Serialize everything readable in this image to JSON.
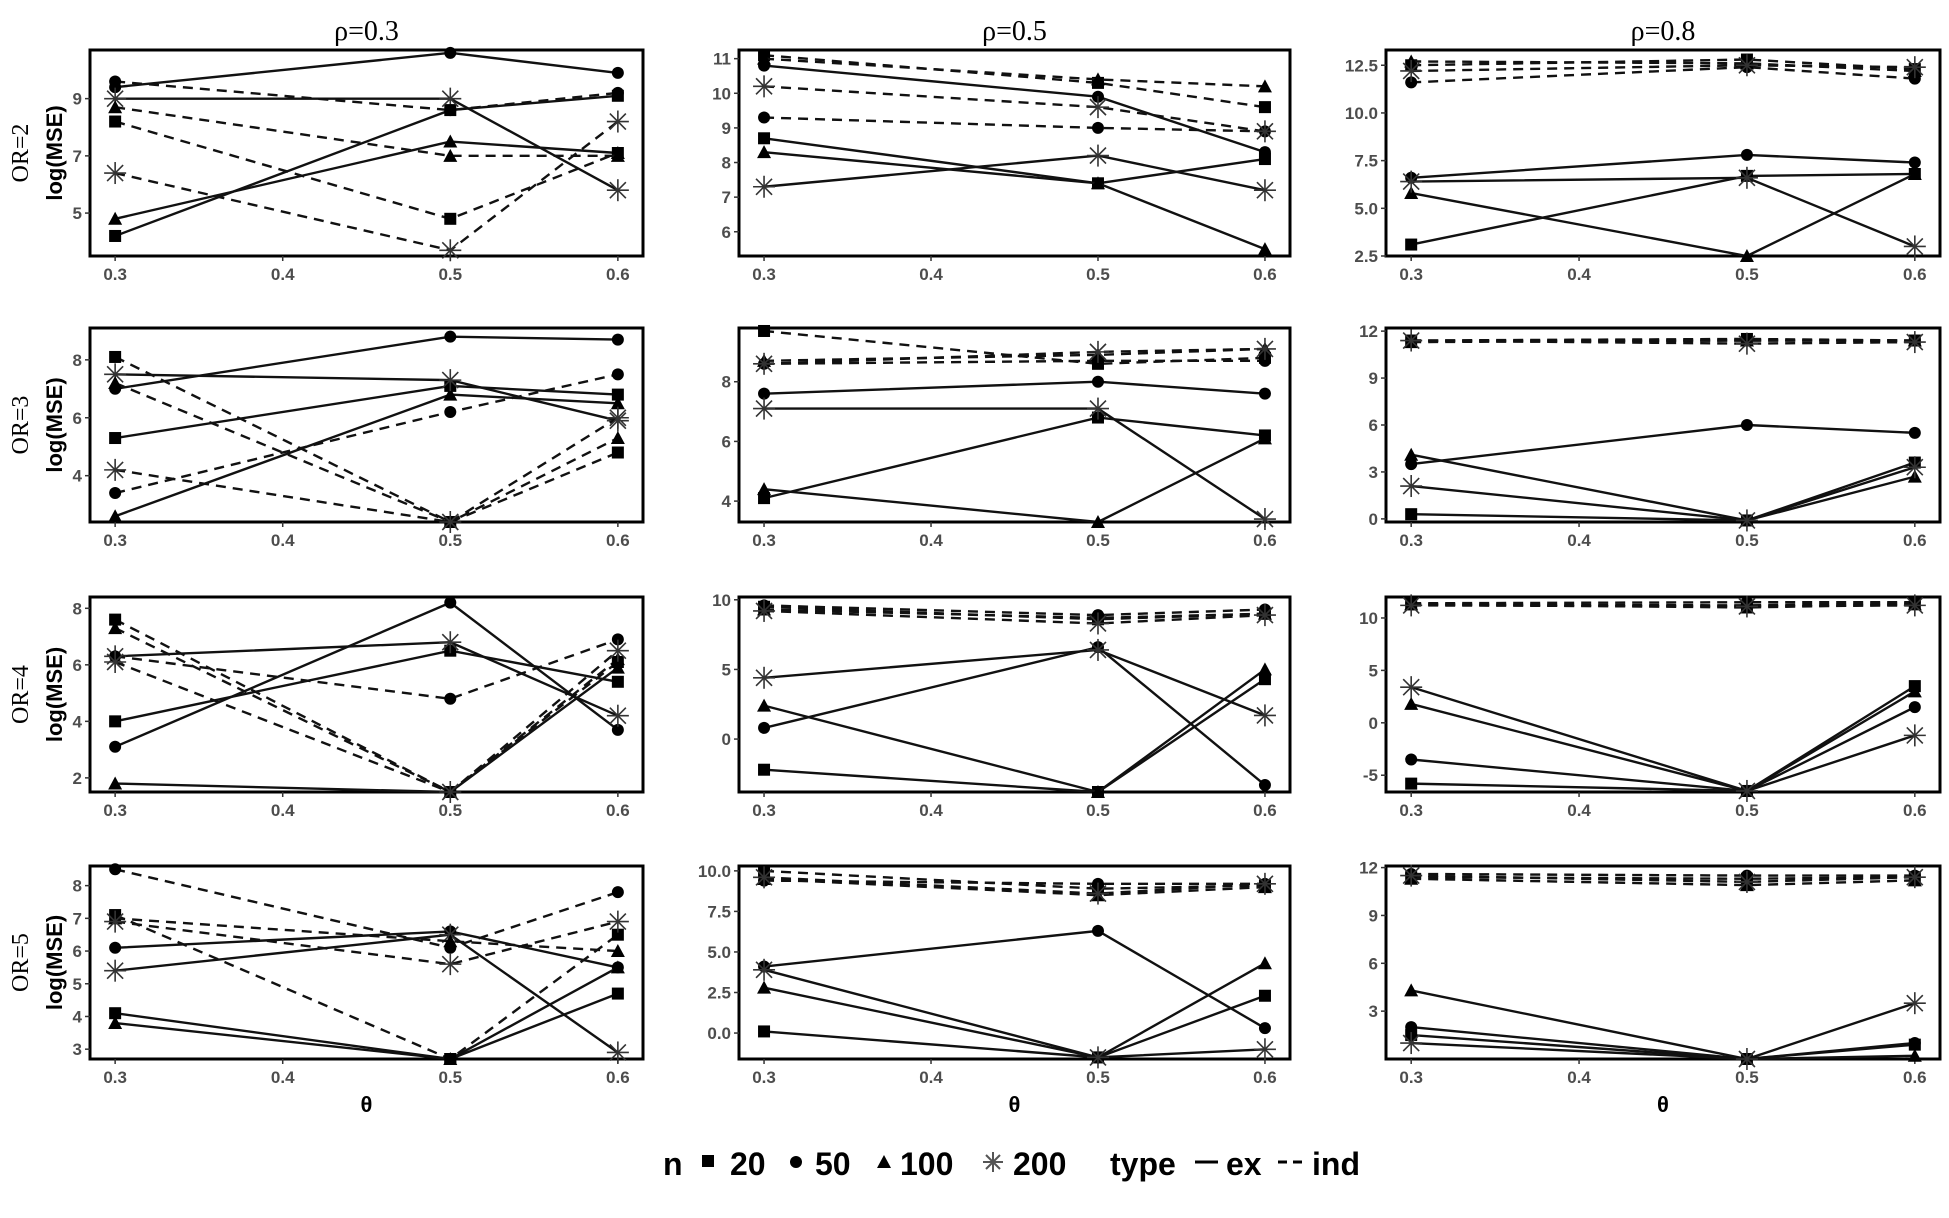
{
  "chart_data": {
    "type": "line",
    "xlabel": "θ",
    "ylabel": "log(MSE)",
    "x": [
      0.3,
      0.5,
      0.6
    ],
    "xticks": [
      0.3,
      0.4,
      0.5,
      0.6
    ],
    "xlim": [
      0.285,
      0.615
    ],
    "columns": [
      "ρ=0.3",
      "ρ=0.5",
      "ρ=0.8"
    ],
    "rows": [
      "OR=2",
      "OR=3",
      "OR=4",
      "OR=5"
    ],
    "legend": {
      "n_title": "n",
      "n_values": [
        "20",
        "50",
        "100",
        "200"
      ],
      "type_title": "type",
      "type_values": [
        "ex",
        "ind"
      ],
      "placement": "bottom"
    },
    "panels": [
      {
        "row": 0,
        "col": 0,
        "ylim": [
          3.5,
          10.7
        ],
        "yticks": [
          5,
          7,
          9
        ],
        "series": [
          {
            "n": "20",
            "type": "ex",
            "values": [
              4.2,
              8.6,
              9.1
            ]
          },
          {
            "n": "50",
            "type": "ex",
            "values": [
              9.4,
              10.6,
              9.9
            ]
          },
          {
            "n": "100",
            "type": "ex",
            "values": [
              4.8,
              7.5,
              7.1
            ]
          },
          {
            "n": "200",
            "type": "ex",
            "values": [
              9.0,
              9.0,
              5.8
            ]
          },
          {
            "n": "20",
            "type": "ind",
            "values": [
              8.2,
              4.8,
              7.1
            ]
          },
          {
            "n": "50",
            "type": "ind",
            "values": [
              9.6,
              8.6,
              9.2
            ]
          },
          {
            "n": "100",
            "type": "ind",
            "values": [
              8.7,
              7.0,
              7.0
            ]
          },
          {
            "n": "200",
            "type": "ind",
            "values": [
              6.4,
              3.7,
              8.2
            ]
          }
        ]
      },
      {
        "row": 0,
        "col": 1,
        "ylim": [
          5.3,
          11.25
        ],
        "yticks": [
          6,
          7,
          8,
          9,
          10,
          11
        ],
        "series": [
          {
            "n": "20",
            "type": "ex",
            "values": [
              8.7,
              7.4,
              8.1
            ]
          },
          {
            "n": "50",
            "type": "ex",
            "values": [
              10.8,
              9.9,
              8.3
            ]
          },
          {
            "n": "100",
            "type": "ex",
            "values": [
              8.3,
              7.4,
              5.5
            ]
          },
          {
            "n": "200",
            "type": "ex",
            "values": [
              7.3,
              8.2,
              7.2
            ]
          },
          {
            "n": "20",
            "type": "ind",
            "values": [
              11.1,
              10.3,
              9.6
            ]
          },
          {
            "n": "50",
            "type": "ind",
            "values": [
              9.3,
              9.0,
              8.9
            ]
          },
          {
            "n": "100",
            "type": "ind",
            "values": [
              11.0,
              10.4,
              10.2
            ]
          },
          {
            "n": "200",
            "type": "ind",
            "values": [
              10.2,
              9.6,
              8.9
            ]
          }
        ]
      },
      {
        "row": 0,
        "col": 2,
        "ylim": [
          2.5,
          13.3
        ],
        "yticks": [
          2.5,
          5.0,
          7.5,
          10.0,
          12.5
        ],
        "series": [
          {
            "n": "20",
            "type": "ex",
            "values": [
              3.1,
              6.7,
              6.8
            ]
          },
          {
            "n": "50",
            "type": "ex",
            "values": [
              6.6,
              7.8,
              7.4
            ]
          },
          {
            "n": "100",
            "type": "ex",
            "values": [
              5.8,
              2.5,
              6.8
            ]
          },
          {
            "n": "200",
            "type": "ex",
            "values": [
              6.4,
              6.6,
              3.0
            ]
          },
          {
            "n": "20",
            "type": "ind",
            "values": [
              12.5,
              12.8,
              12.3
            ]
          },
          {
            "n": "50",
            "type": "ind",
            "values": [
              11.6,
              12.4,
              11.8
            ]
          },
          {
            "n": "100",
            "type": "ind",
            "values": [
              12.7,
              12.6,
              12.2
            ]
          },
          {
            "n": "200",
            "type": "ind",
            "values": [
              12.2,
              12.5,
              12.4
            ]
          }
        ]
      },
      {
        "row": 1,
        "col": 0,
        "ylim": [
          2.4,
          9.1
        ],
        "yticks": [
          4,
          6,
          8
        ],
        "series": [
          {
            "n": "20",
            "type": "ex",
            "values": [
              5.3,
              7.1,
              6.8
            ]
          },
          {
            "n": "50",
            "type": "ex",
            "values": [
              7.0,
              8.8,
              8.7
            ]
          },
          {
            "n": "100",
            "type": "ex",
            "values": [
              2.6,
              6.8,
              6.5
            ]
          },
          {
            "n": "200",
            "type": "ex",
            "values": [
              7.5,
              7.3,
              5.9
            ]
          },
          {
            "n": "20",
            "type": "ind",
            "values": [
              8.1,
              2.4,
              4.8
            ]
          },
          {
            "n": "50",
            "type": "ind",
            "values": [
              3.4,
              6.2,
              7.5
            ]
          },
          {
            "n": "100",
            "type": "ind",
            "values": [
              7.2,
              2.4,
              5.3
            ]
          },
          {
            "n": "200",
            "type": "ind",
            "values": [
              4.2,
              2.4,
              6.0
            ]
          }
        ]
      },
      {
        "row": 1,
        "col": 1,
        "ylim": [
          3.3,
          9.8
        ],
        "yticks": [
          4,
          6,
          8
        ],
        "series": [
          {
            "n": "20",
            "type": "ex",
            "values": [
              4.1,
              6.8,
              6.2
            ]
          },
          {
            "n": "50",
            "type": "ex",
            "values": [
              7.6,
              8.0,
              7.6
            ]
          },
          {
            "n": "100",
            "type": "ex",
            "values": [
              4.4,
              3.3,
              6.1
            ]
          },
          {
            "n": "200",
            "type": "ex",
            "values": [
              7.1,
              7.1,
              3.4
            ]
          },
          {
            "n": "20",
            "type": "ind",
            "values": [
              9.7,
              8.6,
              8.8
            ]
          },
          {
            "n": "50",
            "type": "ind",
            "values": [
              8.6,
              8.7,
              8.7
            ]
          },
          {
            "n": "100",
            "type": "ind",
            "values": [
              8.7,
              8.9,
              9.1
            ]
          },
          {
            "n": "200",
            "type": "ind",
            "values": [
              8.6,
              9.0,
              9.1
            ]
          }
        ]
      },
      {
        "row": 1,
        "col": 2,
        "ylim": [
          -0.2,
          12.2
        ],
        "yticks": [
          0,
          3,
          6,
          9,
          12
        ],
        "series": [
          {
            "n": "20",
            "type": "ex",
            "values": [
              0.3,
              -0.1,
              3.6
            ]
          },
          {
            "n": "50",
            "type": "ex",
            "values": [
              3.5,
              6.0,
              5.5
            ]
          },
          {
            "n": "100",
            "type": "ex",
            "values": [
              4.1,
              -0.1,
              2.7
            ]
          },
          {
            "n": "200",
            "type": "ex",
            "values": [
              2.1,
              -0.1,
              3.3
            ]
          },
          {
            "n": "20",
            "type": "ind",
            "values": [
              11.4,
              11.5,
              11.4
            ]
          },
          {
            "n": "50",
            "type": "ind",
            "values": [
              11.4,
              11.4,
              11.4
            ]
          },
          {
            "n": "100",
            "type": "ind",
            "values": [
              11.3,
              11.4,
              11.4
            ]
          },
          {
            "n": "200",
            "type": "ind",
            "values": [
              11.4,
              11.2,
              11.3
            ]
          }
        ]
      },
      {
        "row": 2,
        "col": 0,
        "ylim": [
          1.5,
          8.4
        ],
        "yticks": [
          2,
          4,
          6,
          8
        ],
        "series": [
          {
            "n": "20",
            "type": "ex",
            "values": [
              4.0,
              6.5,
              5.4
            ]
          },
          {
            "n": "50",
            "type": "ex",
            "values": [
              3.1,
              8.2,
              3.7
            ]
          },
          {
            "n": "100",
            "type": "ex",
            "values": [
              1.8,
              1.5,
              5.9
            ]
          },
          {
            "n": "200",
            "type": "ex",
            "values": [
              6.3,
              6.8,
              4.2
            ]
          },
          {
            "n": "20",
            "type": "ind",
            "values": [
              7.6,
              1.5,
              6.1
            ]
          },
          {
            "n": "50",
            "type": "ind",
            "values": [
              6.3,
              4.8,
              6.9
            ]
          },
          {
            "n": "100",
            "type": "ind",
            "values": [
              7.3,
              1.5,
              6.2
            ]
          },
          {
            "n": "200",
            "type": "ind",
            "values": [
              6.1,
              1.5,
              6.5
            ]
          }
        ]
      },
      {
        "row": 2,
        "col": 1,
        "ylim": [
          -3.8,
          10.2
        ],
        "yticks": [
          0,
          5,
          10
        ],
        "series": [
          {
            "n": "20",
            "type": "ex",
            "values": [
              -2.2,
              -3.8,
              4.3
            ]
          },
          {
            "n": "50",
            "type": "ex",
            "values": [
              0.8,
              6.6,
              -3.3
            ]
          },
          {
            "n": "100",
            "type": "ex",
            "values": [
              2.4,
              -3.8,
              5.0
            ]
          },
          {
            "n": "200",
            "type": "ex",
            "values": [
              4.4,
              6.4,
              1.7
            ]
          },
          {
            "n": "20",
            "type": "ind",
            "values": [
              9.5,
              8.6,
              9.0
            ]
          },
          {
            "n": "50",
            "type": "ind",
            "values": [
              9.6,
              8.9,
              9.3
            ]
          },
          {
            "n": "100",
            "type": "ind",
            "values": [
              9.3,
              8.7,
              9.0
            ]
          },
          {
            "n": "200",
            "type": "ind",
            "values": [
              9.2,
              8.3,
              8.9
            ]
          }
        ]
      },
      {
        "row": 2,
        "col": 2,
        "ylim": [
          -6.6,
          12
        ],
        "yticks": [
          -5,
          0,
          5,
          10
        ],
        "series": [
          {
            "n": "20",
            "type": "ex",
            "values": [
              -5.8,
              -6.5,
              3.5
            ]
          },
          {
            "n": "50",
            "type": "ex",
            "values": [
              -3.5,
              -6.5,
              1.5
            ]
          },
          {
            "n": "100",
            "type": "ex",
            "values": [
              1.8,
              -6.5,
              3.0
            ]
          },
          {
            "n": "200",
            "type": "ex",
            "values": [
              3.4,
              -6.5,
              -1.2
            ]
          },
          {
            "n": "20",
            "type": "ind",
            "values": [
              11.3,
              11.2,
              11.4
            ]
          },
          {
            "n": "50",
            "type": "ind",
            "values": [
              11.4,
              11.5,
              11.5
            ]
          },
          {
            "n": "100",
            "type": "ind",
            "values": [
              11.3,
              11.0,
              11.3
            ]
          },
          {
            "n": "200",
            "type": "ind",
            "values": [
              11.2,
              11.1,
              11.2
            ]
          }
        ]
      },
      {
        "row": 3,
        "col": 0,
        "ylim": [
          2.7,
          8.6
        ],
        "yticks": [
          3,
          4,
          5,
          6,
          7,
          8
        ],
        "series": [
          {
            "n": "20",
            "type": "ex",
            "values": [
              4.1,
              2.7,
              4.7
            ]
          },
          {
            "n": "50",
            "type": "ex",
            "values": [
              6.1,
              6.6,
              5.5
            ]
          },
          {
            "n": "100",
            "type": "ex",
            "values": [
              3.8,
              2.7,
              5.5
            ]
          },
          {
            "n": "200",
            "type": "ex",
            "values": [
              5.4,
              6.5,
              2.9
            ]
          },
          {
            "n": "20",
            "type": "ind",
            "values": [
              7.1,
              2.7,
              6.5
            ]
          },
          {
            "n": "50",
            "type": "ind",
            "values": [
              8.5,
              6.1,
              7.8
            ]
          },
          {
            "n": "100",
            "type": "ind",
            "values": [
              7.0,
              6.3,
              6.0
            ]
          },
          {
            "n": "200",
            "type": "ind",
            "values": [
              6.9,
              5.6,
              6.9
            ]
          }
        ]
      },
      {
        "row": 3,
        "col": 1,
        "ylim": [
          -1.6,
          10.3
        ],
        "yticks": [
          0.0,
          2.5,
          5.0,
          7.5,
          10.0
        ],
        "series": [
          {
            "n": "20",
            "type": "ex",
            "values": [
              0.1,
              -1.5,
              2.3
            ]
          },
          {
            "n": "50",
            "type": "ex",
            "values": [
              4.1,
              6.3,
              0.3
            ]
          },
          {
            "n": "100",
            "type": "ex",
            "values": [
              2.8,
              -1.5,
              4.3
            ]
          },
          {
            "n": "200",
            "type": "ex",
            "values": [
              3.9,
              -1.5,
              -1.0
            ]
          },
          {
            "n": "20",
            "type": "ind",
            "values": [
              10.0,
              8.9,
              9.1
            ]
          },
          {
            "n": "50",
            "type": "ind",
            "values": [
              9.4,
              9.2,
              9.2
            ]
          },
          {
            "n": "100",
            "type": "ind",
            "values": [
              9.5,
              8.5,
              9.0
            ]
          },
          {
            "n": "200",
            "type": "ind",
            "values": [
              9.6,
              8.6,
              9.2
            ]
          }
        ]
      },
      {
        "row": 3,
        "col": 2,
        "ylim": [
          0,
          12.1
        ],
        "yticks": [
          3,
          6,
          9,
          12
        ],
        "series": [
          {
            "n": "20",
            "type": "ex",
            "values": [
              1.5,
              0.0,
              0.9
            ]
          },
          {
            "n": "50",
            "type": "ex",
            "values": [
              2.0,
              0.0,
              1.0
            ]
          },
          {
            "n": "100",
            "type": "ex",
            "values": [
              4.3,
              0.0,
              0.2
            ]
          },
          {
            "n": "200",
            "type": "ex",
            "values": [
              1.0,
              0.0,
              3.5
            ]
          },
          {
            "n": "20",
            "type": "ind",
            "values": [
              11.4,
              11.3,
              11.4
            ]
          },
          {
            "n": "50",
            "type": "ind",
            "values": [
              11.6,
              11.5,
              11.5
            ]
          },
          {
            "n": "100",
            "type": "ind",
            "values": [
              11.3,
              10.9,
              11.2
            ]
          },
          {
            "n": "200",
            "type": "ind",
            "values": [
              11.5,
              11.1,
              11.4
            ]
          }
        ]
      }
    ]
  }
}
